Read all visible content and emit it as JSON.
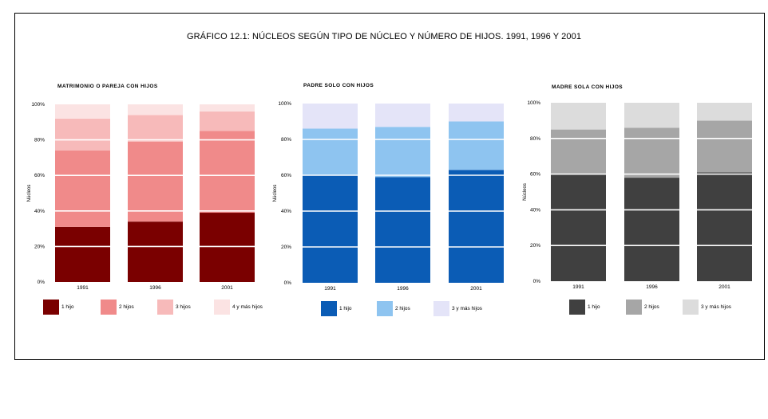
{
  "title": "GRÁFICO 12.1: NÚCLEOS SEGÚN TIPO DE NÚCLEO Y NÚMERO DE HIJOS. 1991, 1996 Y 2001",
  "chart_data": [
    {
      "type": "bar",
      "stacked": true,
      "title": "MATRIMONIO O PAREJA CON HIJOS",
      "ylabel": "Núcleos",
      "ylim": [
        0,
        100
      ],
      "yticks": [
        "0%",
        "20%",
        "40%",
        "60%",
        "80%",
        "100%"
      ],
      "grid": true,
      "legend_position": "bottom",
      "categories": [
        "1991",
        "1996",
        "2001"
      ],
      "series": [
        {
          "name": "1 hijo",
          "color": "#7a0000",
          "values": [
            31,
            34,
            39
          ]
        },
        {
          "name": "2 hijos",
          "color": "#f08a8a",
          "values": [
            43,
            45,
            46
          ]
        },
        {
          "name": "3 hijos",
          "color": "#f7baba",
          "values": [
            18,
            15,
            11
          ]
        },
        {
          "name": "4 y más hijos",
          "color": "#fbe3e3",
          "values": [
            8,
            6,
            4
          ]
        }
      ]
    },
    {
      "type": "bar",
      "stacked": true,
      "title": "PADRE SOLO CON HIJOS",
      "ylabel": "Núcleos",
      "ylim": [
        0,
        100
      ],
      "yticks": [
        "0%",
        "20%",
        "40%",
        "60%",
        "80%",
        "100%"
      ],
      "grid": true,
      "legend_position": "bottom",
      "categories": [
        "1991",
        "1996",
        "2001"
      ],
      "series": [
        {
          "name": "1 hijo",
          "color": "#0b5cb5",
          "values": [
            60,
            59,
            63
          ]
        },
        {
          "name": "2 hijos",
          "color": "#8ec4f0",
          "values": [
            26,
            28,
            27
          ]
        },
        {
          "name": "3 y más hijos",
          "color": "#e4e4f8",
          "values": [
            14,
            13,
            10
          ]
        }
      ]
    },
    {
      "type": "bar",
      "stacked": true,
      "title": "MADRE SOLA CON HIJOS",
      "ylabel": "Núcleos",
      "ylim": [
        0,
        100
      ],
      "yticks": [
        "0%",
        "20%",
        "40%",
        "60%",
        "80%",
        "100%"
      ],
      "grid": true,
      "legend_position": "bottom",
      "categories": [
        "1991",
        "1996",
        "2001"
      ],
      "series": [
        {
          "name": "1 hijo",
          "color": "#404040",
          "values": [
            60,
            58,
            61
          ]
        },
        {
          "name": "2 hijos",
          "color": "#a6a6a6",
          "values": [
            25,
            28,
            29
          ]
        },
        {
          "name": "3 y más hijos",
          "color": "#dcdcdc",
          "values": [
            15,
            14,
            10
          ]
        }
      ]
    }
  ]
}
